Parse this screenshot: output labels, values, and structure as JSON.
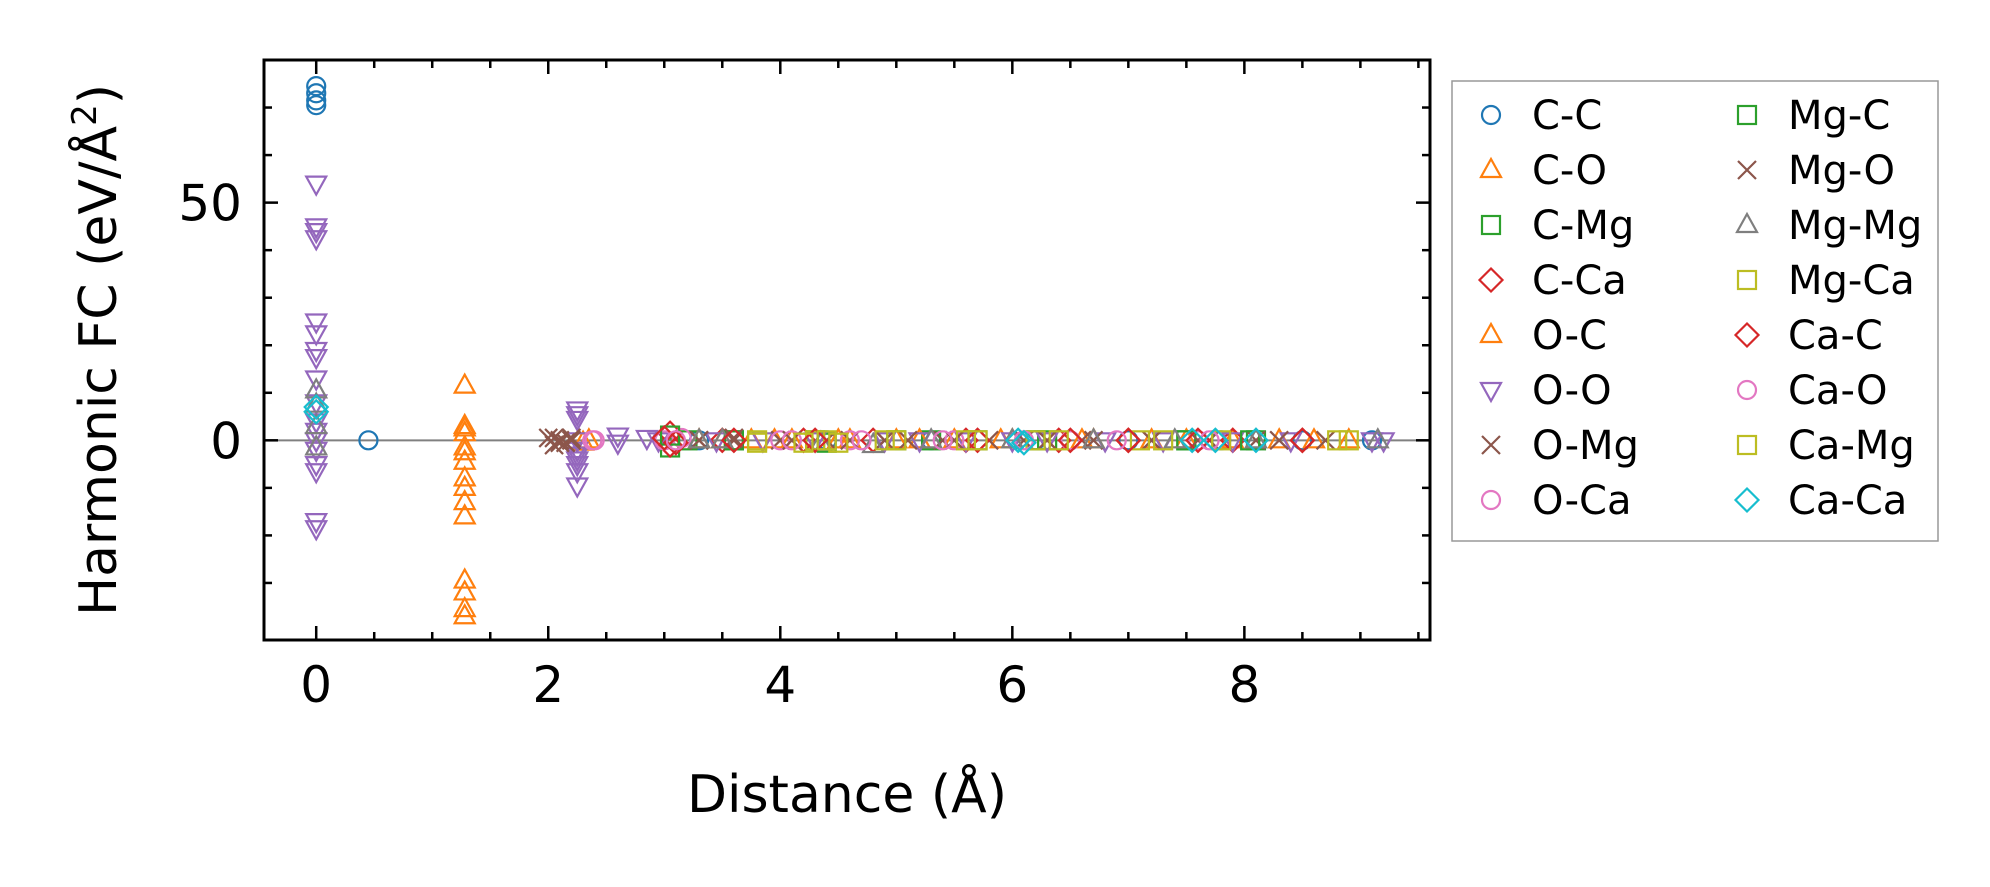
{
  "chart_data": {
    "type": "scatter",
    "title": "",
    "xlabel": "Distance (Å)",
    "ylabel_main": "Harmonic FC (eV/Å",
    "ylabel_sup": "2",
    "ylabel_close": ")",
    "xlim": [
      -0.45,
      9.6
    ],
    "ylim": [
      -42,
      80
    ],
    "x_ticks": [
      0,
      2,
      4,
      6,
      8
    ],
    "x_tick_labels": [
      "0",
      "2",
      "4",
      "6",
      "8"
    ],
    "x_minor_ticks": [
      0.5,
      1,
      1.5,
      2.5,
      3,
      3.5,
      4.5,
      5,
      5.5,
      6.5,
      7,
      7.5,
      8.5,
      9,
      9.5
    ],
    "y_ticks": [
      0,
      50
    ],
    "y_tick_labels": [
      "0",
      "50"
    ],
    "y_minor_ticks": [
      -30,
      -20,
      -10,
      10,
      20,
      30,
      40,
      60,
      70
    ],
    "zero_line": true,
    "legend_position": "outside-right",
    "legend_columns": 2,
    "series": [
      {
        "name": "C-C",
        "marker": "circle",
        "color": "#1f77b4",
        "points": [
          [
            0,
            74.5
          ],
          [
            0,
            73
          ],
          [
            0,
            71.5
          ],
          [
            0,
            70.5
          ],
          [
            0.45,
            0
          ],
          [
            3.3,
            0
          ],
          [
            4.4,
            0
          ],
          [
            5.3,
            0
          ],
          [
            6.2,
            0
          ],
          [
            7.0,
            0
          ],
          [
            7.8,
            0
          ],
          [
            8.5,
            0
          ],
          [
            9.1,
            0
          ]
        ]
      },
      {
        "name": "C-O",
        "marker": "triangle-up",
        "color": "#ff7f0e",
        "points": [
          [
            1.28,
            11.5
          ],
          [
            1.28,
            2.5
          ],
          [
            1.28,
            1.5
          ],
          [
            1.28,
            -1.5
          ],
          [
            1.28,
            -4.5
          ],
          [
            1.28,
            -8
          ],
          [
            1.28,
            -10
          ],
          [
            1.28,
            -13
          ],
          [
            1.28,
            -16
          ],
          [
            1.28,
            -29.5
          ],
          [
            1.28,
            -32
          ],
          [
            1.28,
            -35.5
          ],
          [
            1.28,
            -37
          ],
          [
            2.3,
            -0.5
          ],
          [
            3.5,
            0
          ],
          [
            3.75,
            0
          ],
          [
            4.1,
            0
          ],
          [
            4.5,
            0
          ],
          [
            5.0,
            0
          ],
          [
            5.5,
            0
          ],
          [
            6.0,
            0
          ],
          [
            6.6,
            0
          ],
          [
            7.2,
            0
          ],
          [
            7.9,
            0
          ],
          [
            8.6,
            0
          ]
        ]
      },
      {
        "name": "C-Mg",
        "marker": "square",
        "color": "#2ca02c",
        "points": [
          [
            3.05,
            -1.5
          ],
          [
            3.2,
            0
          ],
          [
            3.6,
            0
          ],
          [
            4.4,
            -0.5
          ],
          [
            5.3,
            0
          ],
          [
            6.3,
            0
          ],
          [
            7.5,
            0
          ],
          [
            8.1,
            0
          ]
        ]
      },
      {
        "name": "C-Ca",
        "marker": "diamond",
        "color": "#d62728",
        "points": [
          [
            3.05,
            1.5
          ],
          [
            3.05,
            -1
          ],
          [
            3.5,
            0
          ],
          [
            4.2,
            0
          ],
          [
            4.8,
            0
          ],
          [
            5.6,
            0
          ],
          [
            6.4,
            0
          ],
          [
            7.0,
            0
          ],
          [
            7.9,
            0
          ],
          [
            8.5,
            0
          ]
        ]
      },
      {
        "name": "O-C",
        "marker": "triangle-up",
        "color": "#ff7f0e",
        "points": [
          [
            1.28,
            3
          ],
          [
            1.28,
            -2.5
          ],
          [
            2.35,
            0
          ],
          [
            3.3,
            0
          ],
          [
            3.95,
            0
          ],
          [
            4.6,
            0
          ],
          [
            5.2,
            0
          ],
          [
            5.9,
            0
          ],
          [
            6.7,
            0
          ],
          [
            7.5,
            0
          ],
          [
            8.3,
            0
          ],
          [
            8.9,
            0
          ]
        ]
      },
      {
        "name": "O-O",
        "marker": "triangle-down",
        "color": "#9467bd",
        "points": [
          [
            0,
            54
          ],
          [
            0,
            45
          ],
          [
            0,
            44
          ],
          [
            0,
            42.5
          ],
          [
            0,
            25
          ],
          [
            0,
            22.5
          ],
          [
            0,
            19
          ],
          [
            0,
            17.5
          ],
          [
            0,
            13
          ],
          [
            0,
            8
          ],
          [
            0,
            4
          ],
          [
            0,
            2
          ],
          [
            0,
            0
          ],
          [
            0,
            -2
          ],
          [
            0,
            -5
          ],
          [
            0,
            -6.5
          ],
          [
            0,
            -17
          ],
          [
            0,
            -18.5
          ],
          [
            2.25,
            6.5
          ],
          [
            2.25,
            5.5
          ],
          [
            2.25,
            4.5
          ],
          [
            2.25,
            0
          ],
          [
            2.25,
            -2
          ],
          [
            2.25,
            -3
          ],
          [
            2.25,
            -4
          ],
          [
            2.25,
            -5
          ],
          [
            2.25,
            -6.5
          ],
          [
            2.25,
            -9.5
          ],
          [
            2.6,
            1
          ],
          [
            2.6,
            -0.5
          ],
          [
            2.85,
            0.5
          ],
          [
            2.95,
            0
          ],
          [
            3.45,
            0
          ],
          [
            3.85,
            0
          ],
          [
            4.3,
            0
          ],
          [
            4.9,
            0
          ],
          [
            5.2,
            0
          ],
          [
            5.6,
            0
          ],
          [
            6.0,
            0
          ],
          [
            6.3,
            0
          ],
          [
            6.8,
            0
          ],
          [
            7.3,
            0
          ],
          [
            7.9,
            0
          ],
          [
            8.4,
            0
          ],
          [
            9.1,
            0
          ],
          [
            9.2,
            0
          ]
        ]
      },
      {
        "name": "O-Mg",
        "marker": "x",
        "color": "#8c564b",
        "points": [
          [
            2.0,
            0.5
          ],
          [
            2.05,
            -1
          ],
          [
            2.1,
            0
          ],
          [
            2.15,
            -0.5
          ],
          [
            2.2,
            0.5
          ],
          [
            3.3,
            0
          ],
          [
            3.6,
            0
          ],
          [
            4.0,
            0
          ],
          [
            4.4,
            0
          ],
          [
            4.9,
            0
          ],
          [
            5.4,
            0
          ],
          [
            5.8,
            0
          ],
          [
            6.3,
            0
          ],
          [
            6.7,
            0
          ],
          [
            7.2,
            0
          ],
          [
            7.7,
            0
          ],
          [
            8.1,
            0
          ],
          [
            8.7,
            0
          ]
        ]
      },
      {
        "name": "O-Ca",
        "marker": "circle",
        "color": "#e377c2",
        "points": [
          [
            2.38,
            0
          ],
          [
            3.0,
            0
          ],
          [
            3.15,
            0.5
          ],
          [
            4.0,
            0
          ],
          [
            4.6,
            0
          ],
          [
            5.5,
            0
          ],
          [
            6.5,
            0
          ],
          [
            7.6,
            0
          ]
        ]
      },
      {
        "name": "Mg-C",
        "marker": "square",
        "color": "#2ca02c",
        "points": [
          [
            3.05,
            1
          ],
          [
            3.6,
            0
          ],
          [
            4.3,
            0
          ],
          [
            5.0,
            0
          ],
          [
            5.7,
            0
          ],
          [
            6.2,
            0
          ],
          [
            7.5,
            0
          ],
          [
            8.05,
            0
          ]
        ]
      },
      {
        "name": "Mg-O",
        "marker": "x",
        "color": "#8c564b",
        "points": [
          [
            2.05,
            0.5
          ],
          [
            2.1,
            -0.5
          ],
          [
            2.2,
            0
          ],
          [
            3.3,
            0
          ],
          [
            3.6,
            0.5
          ],
          [
            4.1,
            0
          ],
          [
            4.6,
            0
          ],
          [
            5.1,
            0
          ],
          [
            5.5,
            0
          ],
          [
            6.1,
            0
          ],
          [
            6.6,
            0
          ],
          [
            7.2,
            0
          ],
          [
            7.6,
            0
          ],
          [
            8.3,
            0
          ]
        ]
      },
      {
        "name": "Mg-Mg",
        "marker": "triangle-up",
        "color": "#7f7f7f",
        "points": [
          [
            0,
            10.5
          ],
          [
            0,
            7.5
          ],
          [
            0,
            3
          ],
          [
            0,
            -1.5
          ],
          [
            3.3,
            0
          ],
          [
            3.5,
            0
          ],
          [
            4.35,
            -0.5
          ],
          [
            4.8,
            -1
          ],
          [
            5.3,
            0
          ],
          [
            6.0,
            0
          ],
          [
            6.7,
            0
          ],
          [
            7.4,
            0
          ],
          [
            8.1,
            0
          ],
          [
            9.15,
            0
          ]
        ]
      },
      {
        "name": "Mg-Ca",
        "marker": "square",
        "color": "#bcbd22",
        "points": [
          [
            3.8,
            -0.5
          ],
          [
            4.3,
            0
          ],
          [
            4.5,
            -0.5
          ],
          [
            5.0,
            0
          ],
          [
            5.6,
            0
          ],
          [
            6.2,
            0
          ],
          [
            7.1,
            0
          ],
          [
            7.8,
            0
          ],
          [
            8.8,
            0
          ]
        ]
      },
      {
        "name": "Ca-C",
        "marker": "diamond",
        "color": "#d62728",
        "points": [
          [
            3.0,
            0.5
          ],
          [
            3.1,
            -0.5
          ],
          [
            3.6,
            0
          ],
          [
            4.3,
            0
          ],
          [
            5.7,
            0
          ],
          [
            6.5,
            0
          ],
          [
            7.0,
            0
          ],
          [
            7.6,
            0
          ],
          [
            8.5,
            0
          ]
        ]
      },
      {
        "name": "Ca-O",
        "marker": "circle",
        "color": "#e377c2",
        "points": [
          [
            2.4,
            0
          ],
          [
            3.1,
            0
          ],
          [
            4.1,
            0
          ],
          [
            4.7,
            0
          ],
          [
            5.4,
            0
          ],
          [
            6.1,
            0
          ],
          [
            6.9,
            0
          ],
          [
            7.7,
            0
          ]
        ]
      },
      {
        "name": "Ca-Mg",
        "marker": "square",
        "color": "#bcbd22",
        "points": [
          [
            3.8,
            0
          ],
          [
            4.2,
            -0.5
          ],
          [
            4.4,
            0
          ],
          [
            4.9,
            0
          ],
          [
            5.7,
            0
          ],
          [
            6.4,
            0
          ],
          [
            7.3,
            0
          ],
          [
            8.9,
            0
          ]
        ]
      },
      {
        "name": "Ca-Ca",
        "marker": "diamond",
        "color": "#17becf",
        "points": [
          [
            0,
            7
          ],
          [
            0,
            6
          ],
          [
            6.05,
            0
          ],
          [
            6.1,
            -0.5
          ],
          [
            7.55,
            0
          ],
          [
            7.75,
            0
          ],
          [
            8.1,
            0
          ]
        ]
      }
    ]
  }
}
